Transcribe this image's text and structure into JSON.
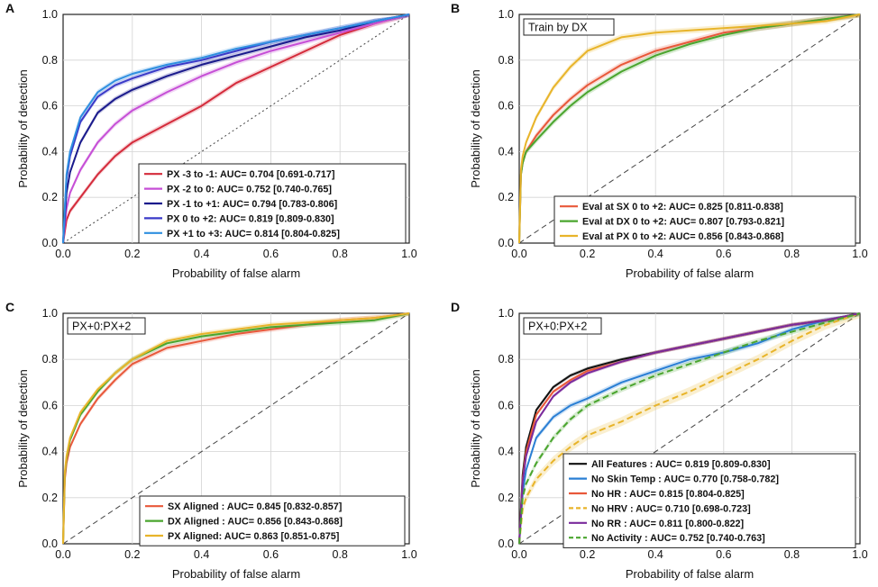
{
  "chart_data": [
    {
      "panel": "A",
      "type": "line",
      "title": "",
      "inset_label": "",
      "xlabel": "Probability of false alarm",
      "ylabel": "Probability of detection",
      "xlim": [
        0,
        1
      ],
      "ylim": [
        0,
        1
      ],
      "xticks": [
        "0.0",
        "0.2",
        "0.4",
        "0.6",
        "0.8",
        "1.0"
      ],
      "yticks": [
        "0.0",
        "0.2",
        "0.4",
        "0.6",
        "0.8",
        "1.0"
      ],
      "grid": true,
      "legend_position": "bottom-right",
      "chance_line": "dotted",
      "series": [
        {
          "name": "PX -3 to -1: AUC= 0.704 [0.691-0.717]",
          "color": "#d42a3a",
          "band": 0.012,
          "dashed": false,
          "x": [
            0,
            0.01,
            0.02,
            0.05,
            0.1,
            0.15,
            0.2,
            0.3,
            0.4,
            0.5,
            0.6,
            0.7,
            0.8,
            0.9,
            1
          ],
          "y": [
            0,
            0.1,
            0.14,
            0.2,
            0.3,
            0.38,
            0.44,
            0.52,
            0.6,
            0.7,
            0.77,
            0.84,
            0.91,
            0.96,
            1
          ]
        },
        {
          "name": "PX -2 to 0: AUC= 0.752 [0.740-0.765]",
          "color": "#c64fd6",
          "band": 0.012,
          "dashed": false,
          "x": [
            0,
            0.01,
            0.02,
            0.05,
            0.1,
            0.15,
            0.2,
            0.3,
            0.4,
            0.5,
            0.6,
            0.7,
            0.8,
            0.9,
            1
          ],
          "y": [
            0,
            0.15,
            0.22,
            0.32,
            0.44,
            0.52,
            0.58,
            0.66,
            0.73,
            0.79,
            0.84,
            0.88,
            0.92,
            0.96,
            1
          ]
        },
        {
          "name": "PX -1 to +1: AUC= 0.794 [0.783-0.806]",
          "color": "#1a1a8c",
          "band": 0.011,
          "dashed": false,
          "x": [
            0,
            0.01,
            0.02,
            0.05,
            0.1,
            0.15,
            0.2,
            0.3,
            0.4,
            0.5,
            0.6,
            0.7,
            0.8,
            0.9,
            1
          ],
          "y": [
            0,
            0.22,
            0.31,
            0.44,
            0.57,
            0.63,
            0.67,
            0.73,
            0.78,
            0.82,
            0.86,
            0.9,
            0.93,
            0.97,
            1
          ]
        },
        {
          "name": "PX 0 to +2: AUC= 0.819 [0.809-0.830]",
          "color": "#3a3ac8",
          "band": 0.011,
          "dashed": false,
          "x": [
            0,
            0.01,
            0.02,
            0.05,
            0.1,
            0.15,
            0.2,
            0.3,
            0.4,
            0.5,
            0.6,
            0.7,
            0.8,
            0.9,
            1
          ],
          "y": [
            0,
            0.28,
            0.38,
            0.53,
            0.64,
            0.69,
            0.72,
            0.77,
            0.8,
            0.84,
            0.88,
            0.91,
            0.94,
            0.97,
            1
          ]
        },
        {
          "name": "PX +1 to +3: AUC= 0.814 [0.804-0.825]",
          "color": "#2f8fe0",
          "band": 0.011,
          "dashed": false,
          "x": [
            0,
            0.01,
            0.02,
            0.05,
            0.1,
            0.15,
            0.2,
            0.3,
            0.4,
            0.5,
            0.6,
            0.7,
            0.8,
            0.9,
            1
          ],
          "y": [
            0,
            0.3,
            0.4,
            0.55,
            0.66,
            0.71,
            0.74,
            0.78,
            0.81,
            0.85,
            0.88,
            0.91,
            0.94,
            0.97,
            1
          ]
        }
      ]
    },
    {
      "panel": "B",
      "type": "line",
      "title": "",
      "inset_label": "Train by DX",
      "xlabel": "Probability of false alarm",
      "ylabel": "Probability of detection",
      "xlim": [
        0,
        1
      ],
      "ylim": [
        0,
        1
      ],
      "xticks": [
        "0.0",
        "0.2",
        "0.4",
        "0.6",
        "0.8",
        "1.0"
      ],
      "yticks": [
        "0.0",
        "0.2",
        "0.4",
        "0.6",
        "0.8",
        "1.0"
      ],
      "grid": true,
      "legend_position": "bottom-right",
      "chance_line": "dashed",
      "series": [
        {
          "name": "Eval at SX 0 to +2: AUC= 0.825 [0.811-0.838]",
          "color": "#e8583a",
          "band": 0.013,
          "dashed": false,
          "x": [
            0,
            0.005,
            0.01,
            0.02,
            0.05,
            0.1,
            0.15,
            0.2,
            0.3,
            0.4,
            0.5,
            0.6,
            0.7,
            0.8,
            0.9,
            1
          ],
          "y": [
            0,
            0.3,
            0.35,
            0.4,
            0.47,
            0.56,
            0.63,
            0.69,
            0.78,
            0.84,
            0.88,
            0.92,
            0.94,
            0.96,
            0.98,
            1
          ]
        },
        {
          "name": "Eval at DX 0 to +2: AUC= 0.807 [0.793-0.821]",
          "color": "#4aa52e",
          "band": 0.013,
          "dashed": false,
          "x": [
            0,
            0.005,
            0.01,
            0.02,
            0.05,
            0.1,
            0.15,
            0.2,
            0.3,
            0.4,
            0.5,
            0.6,
            0.7,
            0.8,
            0.9,
            1
          ],
          "y": [
            0,
            0.3,
            0.35,
            0.4,
            0.45,
            0.53,
            0.6,
            0.66,
            0.75,
            0.82,
            0.87,
            0.91,
            0.94,
            0.96,
            0.98,
            1
          ]
        },
        {
          "name": "Eval at PX 0 to +2: AUC= 0.856 [0.843-0.868]",
          "color": "#e8b42a",
          "band": 0.013,
          "dashed": false,
          "x": [
            0,
            0.005,
            0.01,
            0.02,
            0.05,
            0.1,
            0.15,
            0.2,
            0.3,
            0.4,
            0.5,
            0.6,
            0.7,
            0.8,
            0.9,
            1
          ],
          "y": [
            0,
            0.32,
            0.38,
            0.44,
            0.55,
            0.68,
            0.77,
            0.84,
            0.9,
            0.92,
            0.93,
            0.94,
            0.95,
            0.96,
            0.97,
            1
          ]
        }
      ]
    },
    {
      "panel": "C",
      "type": "line",
      "title": "",
      "inset_label": "PX+0:PX+2",
      "xlabel": "Probability of false alarm",
      "ylabel": "Probability of detection",
      "xlim": [
        0,
        1
      ],
      "ylim": [
        0,
        1
      ],
      "xticks": [
        "0.0",
        "0.2",
        "0.4",
        "0.6",
        "0.8",
        "1.0"
      ],
      "yticks": [
        "0.0",
        "0.2",
        "0.4",
        "0.6",
        "0.8",
        "1.0"
      ],
      "grid": true,
      "legend_position": "bottom-right",
      "chance_line": "dashed",
      "series": [
        {
          "name": "SX Aligned : AUC= 0.845 [0.832-0.857]",
          "color": "#e8583a",
          "band": 0.011,
          "dashed": false,
          "x": [
            0,
            0.005,
            0.01,
            0.02,
            0.05,
            0.1,
            0.15,
            0.2,
            0.3,
            0.4,
            0.5,
            0.6,
            0.7,
            0.8,
            0.9,
            1
          ],
          "y": [
            0,
            0.28,
            0.35,
            0.42,
            0.52,
            0.63,
            0.71,
            0.78,
            0.85,
            0.88,
            0.91,
            0.93,
            0.95,
            0.97,
            0.98,
            1
          ]
        },
        {
          "name": "DX Aligned : AUC= 0.856 [0.843-0.868]",
          "color": "#4aa52e",
          "band": 0.011,
          "dashed": false,
          "x": [
            0,
            0.005,
            0.01,
            0.02,
            0.05,
            0.1,
            0.15,
            0.2,
            0.3,
            0.4,
            0.5,
            0.6,
            0.7,
            0.8,
            0.9,
            1
          ],
          "y": [
            0,
            0.3,
            0.37,
            0.45,
            0.56,
            0.66,
            0.74,
            0.8,
            0.87,
            0.9,
            0.92,
            0.94,
            0.95,
            0.96,
            0.97,
            1
          ]
        },
        {
          "name": "PX Aligned: AUC= 0.863 [0.851-0.875]",
          "color": "#e8b42a",
          "band": 0.011,
          "dashed": false,
          "x": [
            0,
            0.005,
            0.01,
            0.02,
            0.05,
            0.1,
            0.15,
            0.2,
            0.3,
            0.4,
            0.5,
            0.6,
            0.7,
            0.8,
            0.9,
            1
          ],
          "y": [
            0,
            0.31,
            0.38,
            0.46,
            0.57,
            0.67,
            0.74,
            0.8,
            0.88,
            0.91,
            0.93,
            0.95,
            0.96,
            0.97,
            0.98,
            1
          ]
        }
      ]
    },
    {
      "panel": "D",
      "type": "line",
      "title": "",
      "inset_label": "PX+0:PX+2",
      "xlabel": "Probability of false alarm",
      "ylabel": "Probability of detection",
      "xlim": [
        0,
        1
      ],
      "ylim": [
        0,
        1
      ],
      "xticks": [
        "0.0",
        "0.2",
        "0.4",
        "0.6",
        "0.8",
        "1.0"
      ],
      "yticks": [
        "0.0",
        "0.2",
        "0.4",
        "0.6",
        "0.8",
        "1.0"
      ],
      "grid": true,
      "legend_position": "bottom-right",
      "chance_line": "dashed",
      "series": [
        {
          "name": "All Features : AUC= 0.819 [0.809-0.830]",
          "color": "#111111",
          "band": 0.008,
          "dashed": false,
          "x": [
            0,
            0.01,
            0.02,
            0.05,
            0.1,
            0.15,
            0.2,
            0.3,
            0.4,
            0.5,
            0.6,
            0.7,
            0.8,
            0.9,
            1
          ],
          "y": [
            0,
            0.3,
            0.42,
            0.58,
            0.68,
            0.73,
            0.76,
            0.8,
            0.83,
            0.86,
            0.89,
            0.92,
            0.95,
            0.97,
            1
          ]
        },
        {
          "name": "No Skin Temp : AUC= 0.770 [0.758-0.782]",
          "color": "#2a7fd4",
          "band": 0.012,
          "dashed": false,
          "x": [
            0,
            0.01,
            0.02,
            0.05,
            0.1,
            0.15,
            0.2,
            0.3,
            0.4,
            0.5,
            0.6,
            0.7,
            0.8,
            0.9,
            1
          ],
          "y": [
            0,
            0.22,
            0.32,
            0.46,
            0.55,
            0.6,
            0.63,
            0.7,
            0.75,
            0.8,
            0.83,
            0.87,
            0.93,
            0.97,
            1
          ]
        },
        {
          "name": "No HR : AUC= 0.815 [0.804-0.825]",
          "color": "#e8583a",
          "band": 0.008,
          "dashed": false,
          "x": [
            0,
            0.01,
            0.02,
            0.05,
            0.1,
            0.15,
            0.2,
            0.3,
            0.4,
            0.5,
            0.6,
            0.7,
            0.8,
            0.9,
            1
          ],
          "y": [
            0,
            0.28,
            0.4,
            0.56,
            0.66,
            0.71,
            0.75,
            0.79,
            0.83,
            0.86,
            0.89,
            0.92,
            0.95,
            0.97,
            1
          ]
        },
        {
          "name": "No HRV : AUC= 0.710 [0.698-0.723]",
          "color": "#e8b42a",
          "band": 0.02,
          "dashed": true,
          "x": [
            0,
            0.01,
            0.02,
            0.05,
            0.1,
            0.15,
            0.2,
            0.3,
            0.4,
            0.5,
            0.6,
            0.7,
            0.8,
            0.9,
            1
          ],
          "y": [
            0,
            0.15,
            0.2,
            0.28,
            0.36,
            0.42,
            0.47,
            0.53,
            0.6,
            0.66,
            0.73,
            0.8,
            0.88,
            0.95,
            1
          ]
        },
        {
          "name": "No RR : AUC= 0.811 [0.800-0.822]",
          "color": "#7a2a9c",
          "band": 0.008,
          "dashed": false,
          "x": [
            0,
            0.01,
            0.02,
            0.05,
            0.1,
            0.15,
            0.2,
            0.3,
            0.4,
            0.5,
            0.6,
            0.7,
            0.8,
            0.9,
            1
          ],
          "y": [
            0,
            0.27,
            0.38,
            0.53,
            0.64,
            0.7,
            0.74,
            0.79,
            0.83,
            0.86,
            0.89,
            0.92,
            0.95,
            0.97,
            1
          ]
        },
        {
          "name": "No Activity : AUC= 0.752 [0.740-0.763]",
          "color": "#4aa52e",
          "band": 0.012,
          "dashed": true,
          "x": [
            0,
            0.01,
            0.02,
            0.05,
            0.1,
            0.15,
            0.2,
            0.3,
            0.4,
            0.5,
            0.6,
            0.7,
            0.8,
            0.9,
            1
          ],
          "y": [
            0,
            0.2,
            0.26,
            0.35,
            0.46,
            0.54,
            0.6,
            0.67,
            0.73,
            0.78,
            0.83,
            0.88,
            0.92,
            0.96,
            1
          ]
        }
      ]
    }
  ]
}
